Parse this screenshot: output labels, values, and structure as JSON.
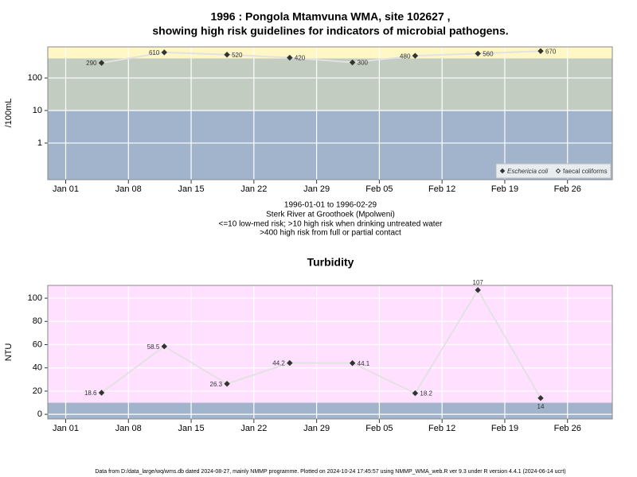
{
  "chart_data": [
    {
      "type": "line",
      "title": "1996 : Pongola Mtamvuna WMA, site 102627 ,",
      "subtitle": "showing high risk guidelines for indicators of microbial pathogens.",
      "ylabel": "/100mL",
      "log": true,
      "x": [
        "1996-01-05",
        "1996-01-12",
        "1996-01-19",
        "1996-01-26",
        "1996-02-02",
        "1996-02-09",
        "1996-02-16",
        "1996-02-23"
      ],
      "series": [
        {
          "name": "Eschericia coli",
          "color": "#333333",
          "marker": "filled",
          "values": [
            290,
            610,
            520,
            420,
            300,
            480,
            560,
            670
          ]
        },
        {
          "name": "faecal coliforms",
          "color": "#333333",
          "marker": "open",
          "values": [
            null,
            null,
            null,
            null,
            null,
            null,
            null,
            null
          ]
        }
      ],
      "line_color": "#e2e2e2",
      "thresholds": [
        10,
        400
      ],
      "band_colors": [
        "#a2b3cc",
        "#c3ccc0",
        "#fff7c6"
      ],
      "xlim": [
        "1995-12-30",
        "1996-03-02"
      ],
      "xticks": [
        {
          "value": "1996-01-01",
          "label": "Jan 01"
        },
        {
          "value": "1996-01-08",
          "label": "Jan 08"
        },
        {
          "value": "1996-01-15",
          "label": "Jan 15"
        },
        {
          "value": "1996-01-22",
          "label": "Jan 22"
        },
        {
          "value": "1996-01-29",
          "label": "Jan 29"
        },
        {
          "value": "1996-02-05",
          "label": "Feb 05"
        },
        {
          "value": "1996-02-12",
          "label": "Feb 12"
        },
        {
          "value": "1996-02-19",
          "label": "Feb 19"
        },
        {
          "value": "1996-02-26",
          "label": "Feb 26"
        }
      ],
      "ylim": [
        0.075,
        900
      ],
      "yticks": [
        1,
        10,
        100
      ],
      "grid": true,
      "legend": "lower right",
      "notes": [
        "1996-01-01 to 1996-02-29",
        "Sterk River at Groothoek (Mpolweni)",
        "<=10 low-med risk; >10 high risk when drinking untreated water",
        ">400 high risk from full or partial contact"
      ]
    },
    {
      "type": "line",
      "title": "Turbidity",
      "ylabel": "NTU",
      "log": false,
      "x": [
        "1996-01-05",
        "1996-01-12",
        "1996-01-19",
        "1996-01-26",
        "1996-02-02",
        "1996-02-09",
        "1996-02-16",
        "1996-02-23"
      ],
      "series": [
        {
          "name": "Turbidity",
          "color": "#333333",
          "marker": "filled",
          "values": [
            18.6,
            58.5,
            26.3,
            44.2,
            44.1,
            18.2,
            107,
            14
          ]
        }
      ],
      "line_color": "#e2e2e2",
      "thresholds": [
        10
      ],
      "band_colors": [
        "#a2b3cc",
        "#ffe0ff"
      ],
      "xlim": [
        "1995-12-30",
        "1996-03-02"
      ],
      "xticks": [
        {
          "value": "1996-01-01",
          "label": "Jan 01"
        },
        {
          "value": "1996-01-08",
          "label": "Jan 08"
        },
        {
          "value": "1996-01-15",
          "label": "Jan 15"
        },
        {
          "value": "1996-01-22",
          "label": "Jan 22"
        },
        {
          "value": "1996-01-29",
          "label": "Jan 29"
        },
        {
          "value": "1996-02-05",
          "label": "Feb 05"
        },
        {
          "value": "1996-02-12",
          "label": "Feb 12"
        },
        {
          "value": "1996-02-19",
          "label": "Feb 19"
        },
        {
          "value": "1996-02-26",
          "label": "Feb 26"
        }
      ],
      "ylim": [
        -4,
        111
      ],
      "yticks": [
        0,
        20,
        40,
        60,
        80,
        100
      ],
      "grid": true
    }
  ],
  "footer": "Data from D:/data_large/wq/wms.db dated 2024-08-27, mainly NMMP programme. Plotted on 2024-10-24 17:45:57 using NMMP_WMA_web.R ver 9.3 under R version 4.4.1 (2024-06-14 ucrt)"
}
